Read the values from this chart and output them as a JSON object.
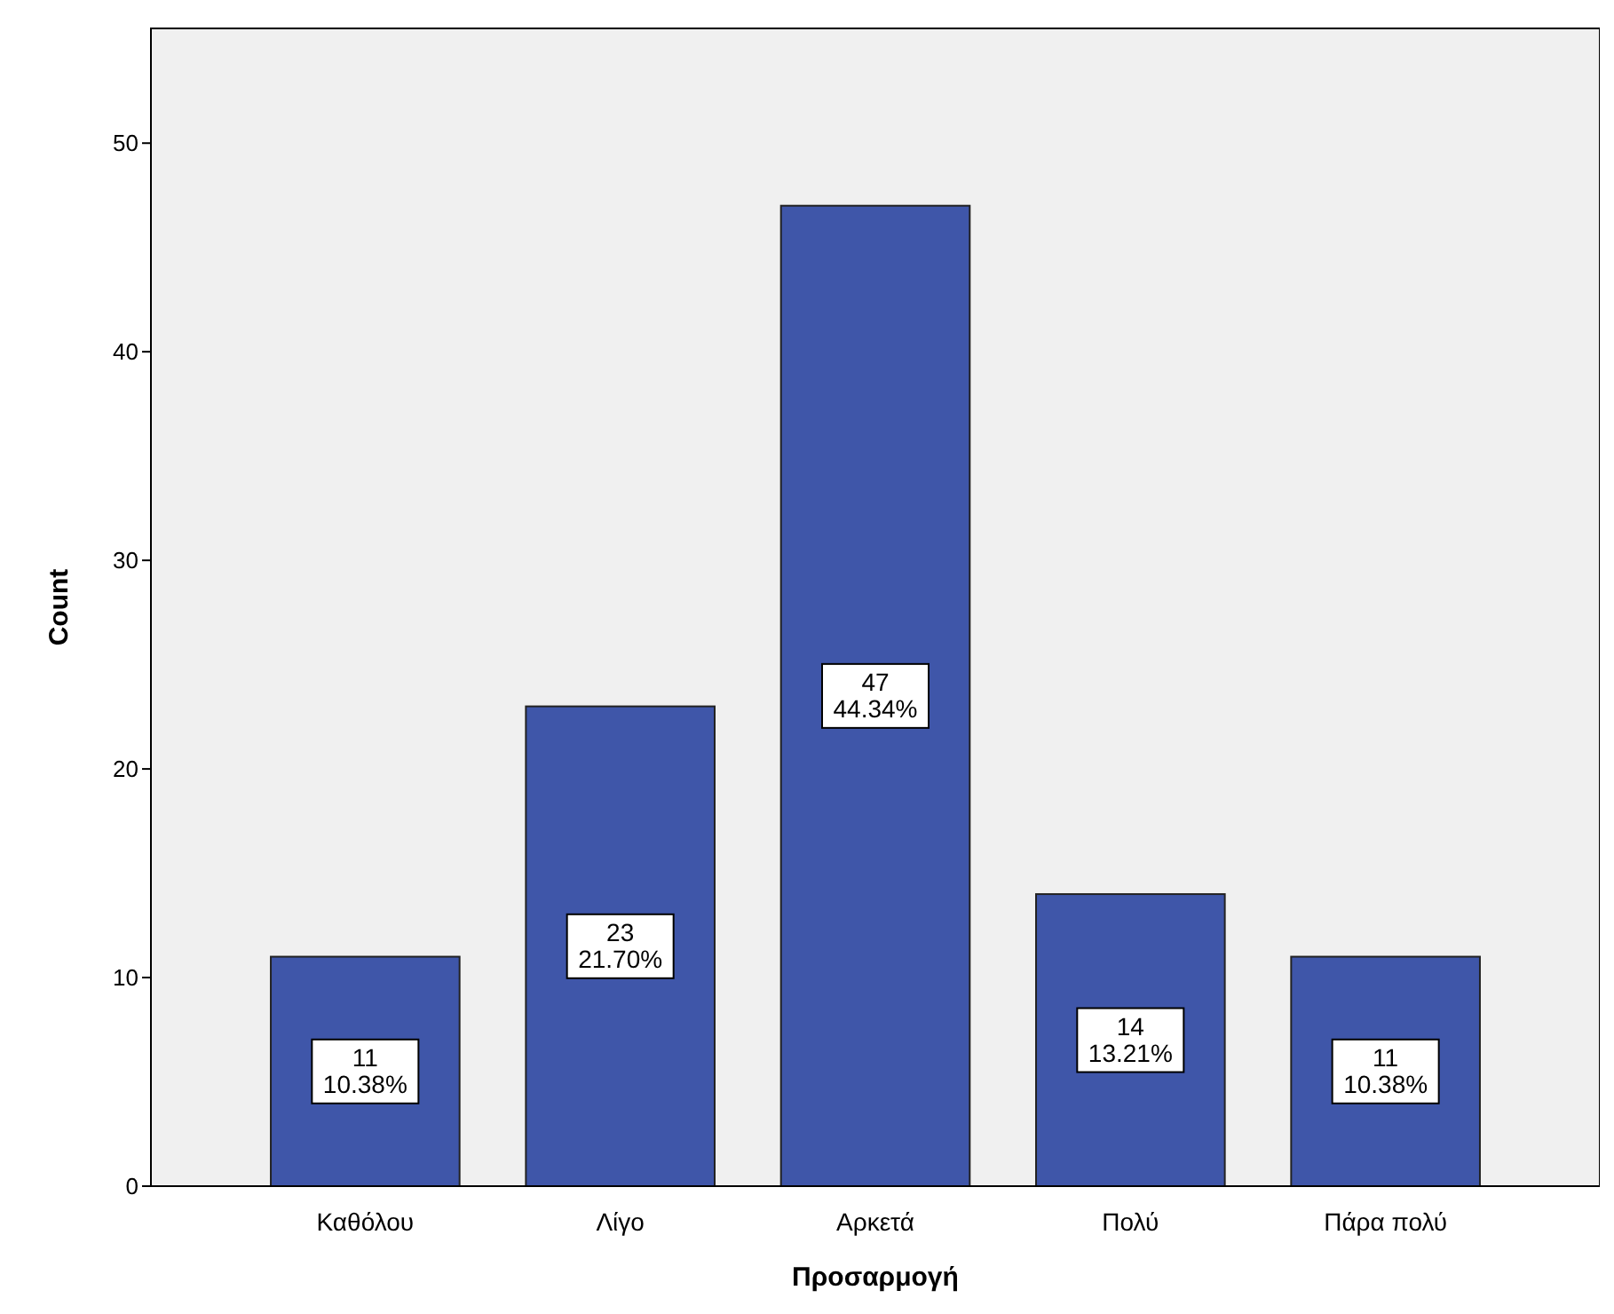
{
  "chart_data": {
    "type": "bar",
    "xlabel": "Προσαρμογή",
    "ylabel": "Count",
    "categories": [
      "Καθόλου",
      "Λίγο",
      "Αρκετά",
      "Πολύ",
      "Πάρα πολύ"
    ],
    "values": [
      11,
      23,
      47,
      14,
      11
    ],
    "color": "#3f56a9",
    "value_labels": [
      "11\n10.38%",
      "23\n21.70%",
      "47\n44.34%",
      "14\n13.21%",
      "11\n10.38%"
    ],
    "ylim": [
      0,
      55.5
    ],
    "yticks": [
      0,
      10,
      20,
      30,
      40,
      50
    ],
    "grid": false
  }
}
